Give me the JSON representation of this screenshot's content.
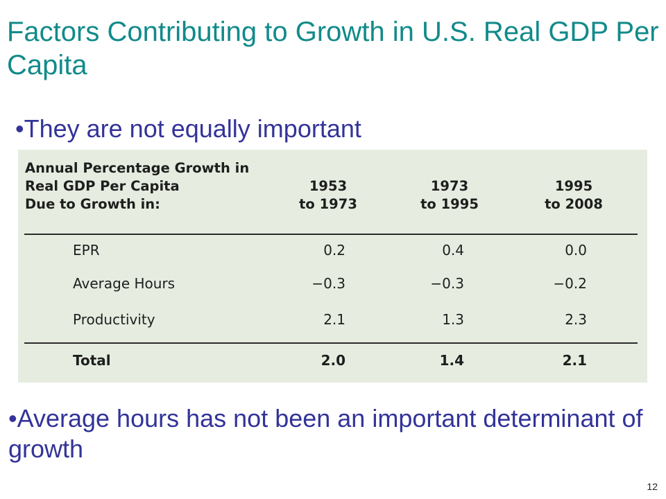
{
  "slide": {
    "title": "Factors Contributing to Growth in U.S. Real GDP Per Capita",
    "bullet_char": "•",
    "bullet1": "They are not equally important",
    "bullet2": "Average hours has not been an important determinant of growth",
    "page_number": "12"
  },
  "table": {
    "header_lines": [
      "Annual Percentage Growth in",
      "Real GDP Per Capita",
      "Due to Growth in:"
    ],
    "columns": [
      {
        "line1": "1953",
        "line2": "to 1973"
      },
      {
        "line1": "1973",
        "line2": "to 1995"
      },
      {
        "line1": "1995",
        "line2": "to 2008"
      }
    ],
    "rows": [
      {
        "label": "EPR",
        "values": [
          "0.2",
          "0.4",
          "0.0"
        ]
      },
      {
        "label": "Average Hours",
        "values": [
          "−0.3",
          "−0.3",
          "−0.2"
        ]
      },
      {
        "label": "Productivity",
        "values": [
          "2.1",
          "1.3",
          "2.3"
        ]
      }
    ],
    "total": {
      "label": "Total",
      "values": [
        "2.0",
        "1.4",
        "2.1"
      ]
    }
  },
  "colors": {
    "title": "#128a8a",
    "bullet_text": "#333399",
    "table_background": "#e6ede0"
  }
}
